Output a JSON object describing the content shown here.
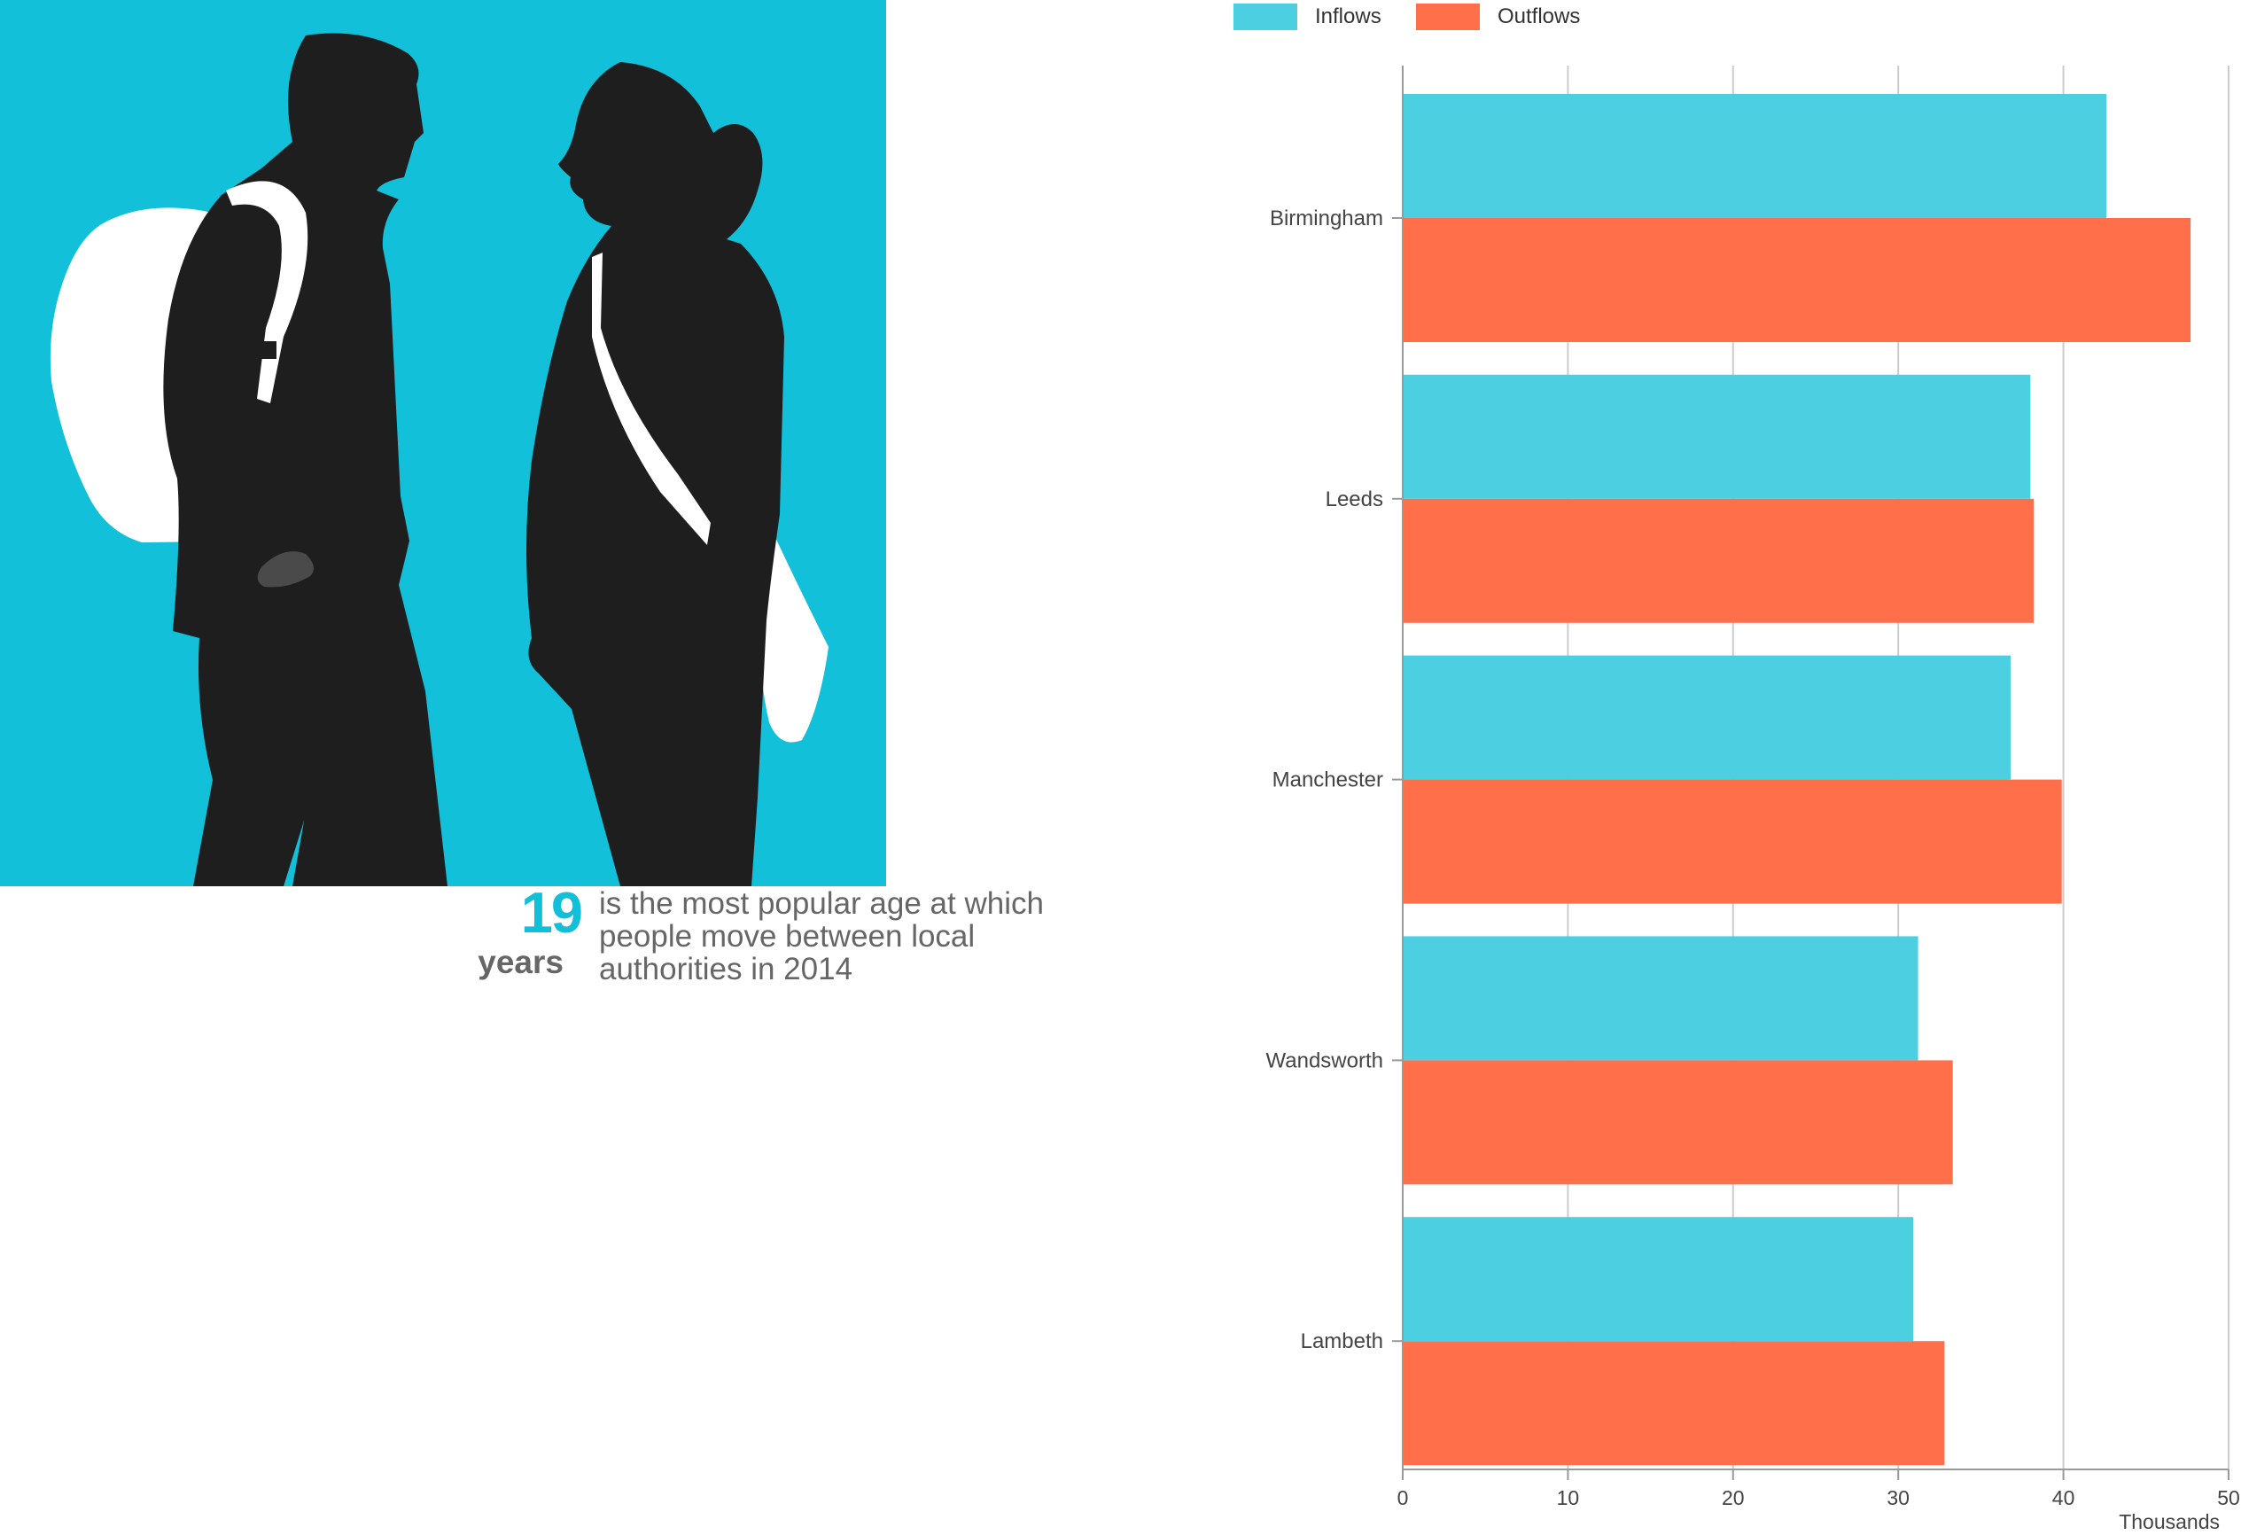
{
  "fact": {
    "number": "19",
    "unit": "years",
    "text": "is the most popular age at which people move between local authorities in 2014"
  },
  "colors": {
    "illustration_bg": "#13c0da",
    "silhouette": "#1e1e1e",
    "inflows": "#4ccfe0",
    "outflows": "#ff6f4a",
    "fact_number": "#12bfd9"
  },
  "chart_data": {
    "type": "bar",
    "orientation": "horizontal",
    "categories": [
      "Birmingham",
      "Leeds",
      "Manchester",
      "Wandsworth",
      "Lambeth"
    ],
    "series": [
      {
        "name": "Inflows",
        "color": "#4ccfe0",
        "values": [
          42.6,
          38.0,
          36.8,
          31.2,
          30.9
        ]
      },
      {
        "name": "Outflows",
        "color": "#ff6f4a",
        "values": [
          47.7,
          38.2,
          39.9,
          33.3,
          32.8
        ]
      }
    ],
    "xlim": [
      0,
      50
    ],
    "xticks": [
      0,
      10,
      20,
      30,
      40,
      50
    ],
    "xlabel": "Thousands",
    "grid": true,
    "legend_position": "top-left"
  }
}
